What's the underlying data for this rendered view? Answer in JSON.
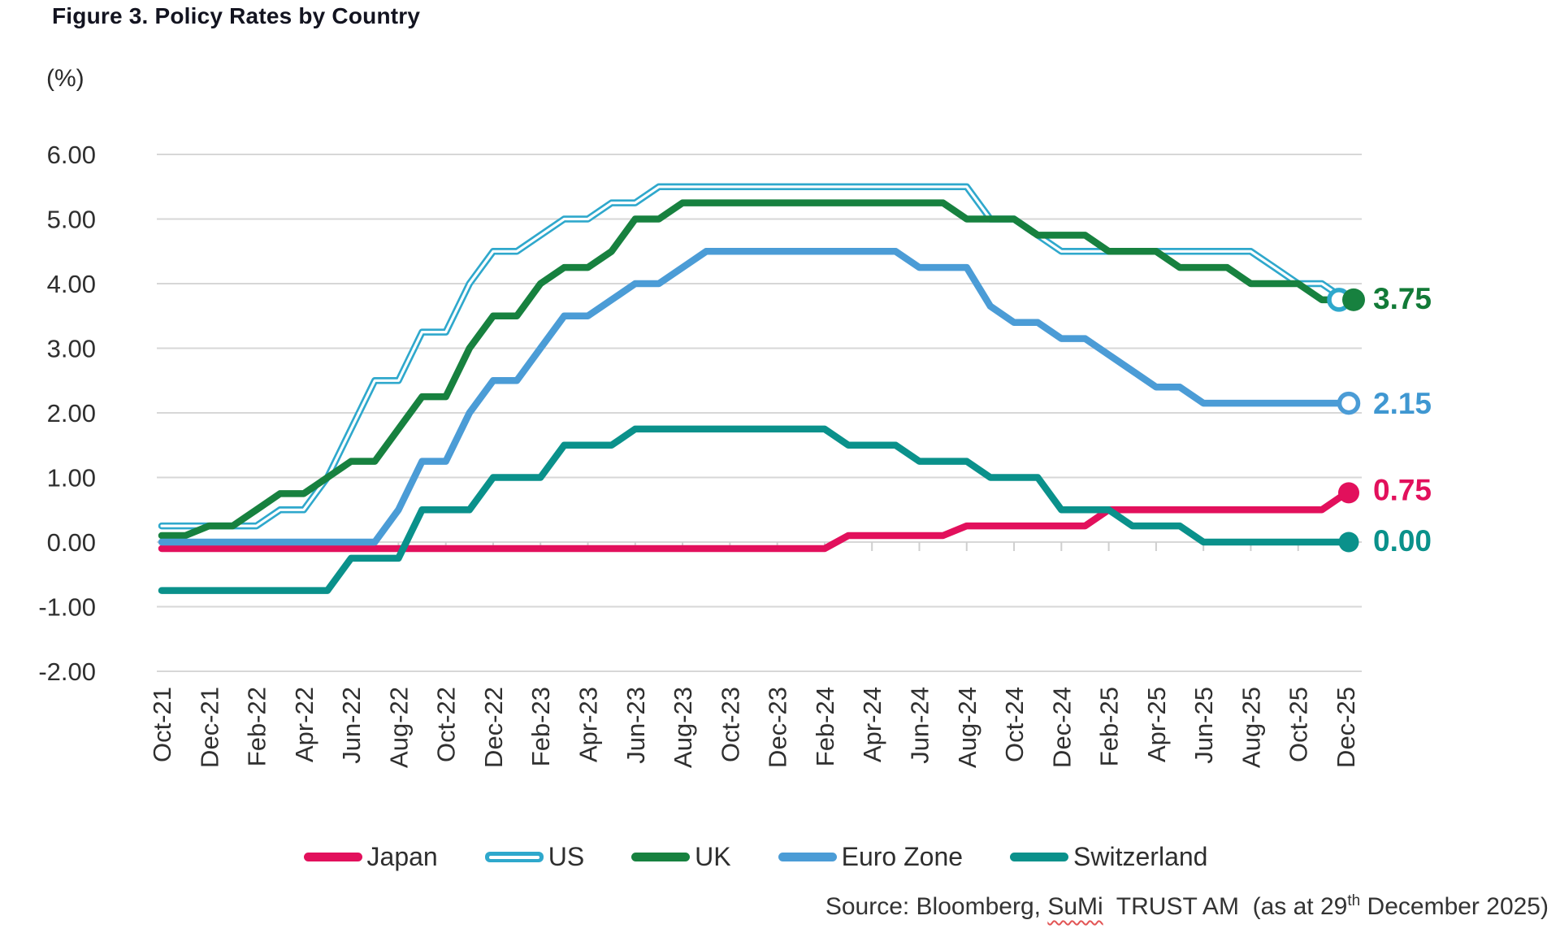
{
  "header": {
    "title": "Figure 3. Policy Rates by Country",
    "unit_label": "(%)"
  },
  "legend": {
    "items": [
      "Japan",
      "US",
      "UK",
      "Euro Zone",
      "Switzerland"
    ]
  },
  "source": {
    "prefix": "Source: Bloomberg, ",
    "sumi": "SuMi",
    "mid": "  TRUST AM  (as at 29",
    "sup": "th",
    "suffix": " December 2025)"
  },
  "chart_data": {
    "type": "line",
    "title": "Figure 3. Policy Rates by Country",
    "ylabel": "(%)",
    "ylim": [
      -2,
      6
    ],
    "grid": true,
    "legend_position": "bottom",
    "y_tick_labels": [
      "6.00",
      "5.00",
      "4.00",
      "3.00",
      "2.00",
      "1.00",
      "0.00",
      "-1.00",
      "-2.00"
    ],
    "x_tick_labels": [
      "Oct-21",
      "Dec-21",
      "Feb-22",
      "Apr-22",
      "Jun-22",
      "Aug-22",
      "Oct-22",
      "Dec-22",
      "Feb-23",
      "Apr-23",
      "Jun-23",
      "Aug-23",
      "Oct-23",
      "Dec-23",
      "Feb-24",
      "Apr-24",
      "Jun-24",
      "Aug-24",
      "Oct-24",
      "Dec-24",
      "Feb-25",
      "Apr-25",
      "Jun-25",
      "Aug-25",
      "Oct-25",
      "Dec-25"
    ],
    "x": [
      "Oct-21",
      "Nov-21",
      "Dec-21",
      "Jan-22",
      "Feb-22",
      "Mar-22",
      "Apr-22",
      "May-22",
      "Jun-22",
      "Jul-22",
      "Aug-22",
      "Sep-22",
      "Oct-22",
      "Nov-22",
      "Dec-22",
      "Jan-23",
      "Feb-23",
      "Mar-23",
      "Apr-23",
      "May-23",
      "Jun-23",
      "Jul-23",
      "Aug-23",
      "Sep-23",
      "Oct-23",
      "Nov-23",
      "Dec-23",
      "Jan-24",
      "Feb-24",
      "Mar-24",
      "Apr-24",
      "May-24",
      "Jun-24",
      "Jul-24",
      "Aug-24",
      "Sep-24",
      "Oct-24",
      "Nov-24",
      "Dec-24",
      "Jan-25",
      "Feb-25",
      "Mar-25",
      "Apr-25",
      "May-25",
      "Jun-25",
      "Jul-25",
      "Aug-25",
      "Sep-25",
      "Oct-25",
      "Nov-25",
      "Dec-25"
    ],
    "series": [
      {
        "name": "Japan",
        "color": "#e2105c",
        "label_color": "#e2105c",
        "line_style": "solid",
        "marker": "filled",
        "end_label": "0.75",
        "values": [
          -0.1,
          -0.1,
          -0.1,
          -0.1,
          -0.1,
          -0.1,
          -0.1,
          -0.1,
          -0.1,
          -0.1,
          -0.1,
          -0.1,
          -0.1,
          -0.1,
          -0.1,
          -0.1,
          -0.1,
          -0.1,
          -0.1,
          -0.1,
          -0.1,
          -0.1,
          -0.1,
          -0.1,
          -0.1,
          -0.1,
          -0.1,
          -0.1,
          -0.1,
          0.1,
          0.1,
          0.1,
          0.1,
          0.1,
          0.25,
          0.25,
          0.25,
          0.25,
          0.25,
          0.25,
          0.5,
          0.5,
          0.5,
          0.5,
          0.5,
          0.5,
          0.5,
          0.5,
          0.5,
          0.5,
          0.75
        ]
      },
      {
        "name": "US",
        "color": "#2fa8cc",
        "label_color": "#2fa8cc",
        "line_style": "double",
        "marker": "open",
        "end_label": "",
        "values": [
          0.25,
          0.25,
          0.25,
          0.25,
          0.25,
          0.5,
          0.5,
          1.0,
          1.75,
          2.5,
          2.5,
          3.25,
          3.25,
          4.0,
          4.5,
          4.5,
          4.75,
          5.0,
          5.0,
          5.25,
          5.25,
          5.5,
          5.5,
          5.5,
          5.5,
          5.5,
          5.5,
          5.5,
          5.5,
          5.5,
          5.5,
          5.5,
          5.5,
          5.5,
          5.5,
          5.0,
          5.0,
          4.75,
          4.5,
          4.5,
          4.5,
          4.5,
          4.5,
          4.5,
          4.5,
          4.5,
          4.5,
          4.25,
          4.0,
          4.0,
          3.75
        ]
      },
      {
        "name": "UK",
        "color": "#17813f",
        "label_color": "#127a37",
        "line_style": "solid",
        "marker": "filled",
        "end_label": "3.75",
        "values": [
          0.1,
          0.1,
          0.25,
          0.25,
          0.5,
          0.75,
          0.75,
          1.0,
          1.25,
          1.25,
          1.75,
          2.25,
          2.25,
          3.0,
          3.5,
          3.5,
          4.0,
          4.25,
          4.25,
          4.5,
          5.0,
          5.0,
          5.25,
          5.25,
          5.25,
          5.25,
          5.25,
          5.25,
          5.25,
          5.25,
          5.25,
          5.25,
          5.25,
          5.25,
          5.0,
          5.0,
          5.0,
          4.75,
          4.75,
          4.75,
          4.5,
          4.5,
          4.5,
          4.25,
          4.25,
          4.25,
          4.0,
          4.0,
          4.0,
          3.75,
          3.75
        ]
      },
      {
        "name": "Euro Zone",
        "color": "#4b9cd6",
        "label_color": "#3f97d1",
        "line_style": "solid",
        "marker": "open",
        "end_label": "2.15",
        "values": [
          0.0,
          0.0,
          0.0,
          0.0,
          0.0,
          0.0,
          0.0,
          0.0,
          0.0,
          0.0,
          0.5,
          1.25,
          1.25,
          2.0,
          2.5,
          2.5,
          3.0,
          3.5,
          3.5,
          3.75,
          4.0,
          4.0,
          4.25,
          4.5,
          4.5,
          4.5,
          4.5,
          4.5,
          4.5,
          4.5,
          4.5,
          4.5,
          4.25,
          4.25,
          4.25,
          3.65,
          3.4,
          3.4,
          3.15,
          3.15,
          2.9,
          2.65,
          2.4,
          2.4,
          2.15,
          2.15,
          2.15,
          2.15,
          2.15,
          2.15,
          2.15
        ]
      },
      {
        "name": "Switzerland",
        "color": "#0a918b",
        "label_color": "#0a918b",
        "line_style": "solid",
        "marker": "filled",
        "end_label": "0.00",
        "values": [
          -0.75,
          -0.75,
          -0.75,
          -0.75,
          -0.75,
          -0.75,
          -0.75,
          -0.75,
          -0.25,
          -0.25,
          -0.25,
          0.5,
          0.5,
          0.5,
          1.0,
          1.0,
          1.0,
          1.5,
          1.5,
          1.5,
          1.75,
          1.75,
          1.75,
          1.75,
          1.75,
          1.75,
          1.75,
          1.75,
          1.75,
          1.5,
          1.5,
          1.5,
          1.25,
          1.25,
          1.25,
          1.0,
          1.0,
          1.0,
          0.5,
          0.5,
          0.5,
          0.25,
          0.25,
          0.25,
          0.0,
          0.0,
          0.0,
          0.0,
          0.0,
          0.0,
          0.0
        ]
      }
    ]
  }
}
